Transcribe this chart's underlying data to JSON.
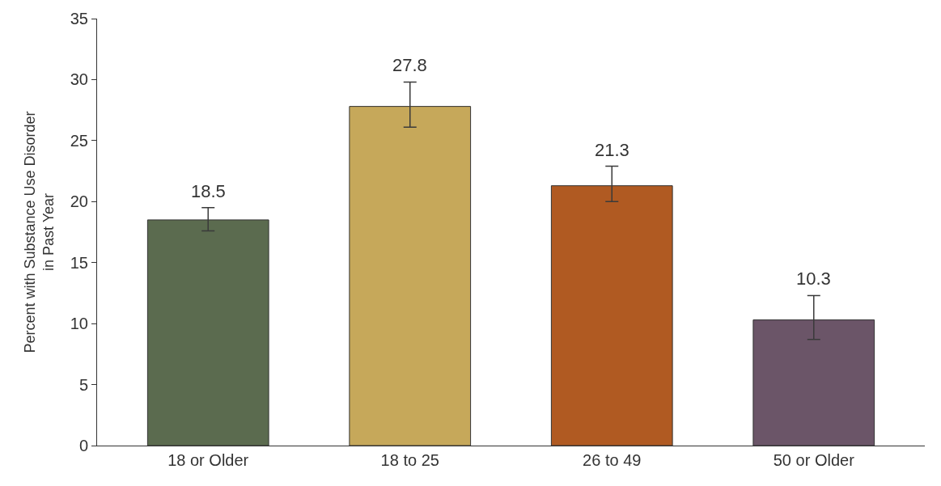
{
  "chart_data": {
    "type": "bar",
    "ylabel": "Percent with Substance Use Disorder\nin Past Year",
    "categories": [
      "18 or Older",
      "18 to 25",
      "26 to 49",
      "50 or Older"
    ],
    "values": [
      18.5,
      27.8,
      21.3,
      10.3
    ],
    "colors": [
      "#5b6b4f",
      "#c6a85a",
      "#b05a22",
      "#6b5568"
    ],
    "errors": [
      [
        17.6,
        19.5
      ],
      [
        26.1,
        29.8
      ],
      [
        20.0,
        22.9
      ],
      [
        8.7,
        12.3
      ]
    ],
    "data_labels": true,
    "ylim": [
      0,
      35
    ],
    "yticks": [
      0,
      5,
      10,
      15,
      20,
      25,
      30,
      35
    ]
  }
}
